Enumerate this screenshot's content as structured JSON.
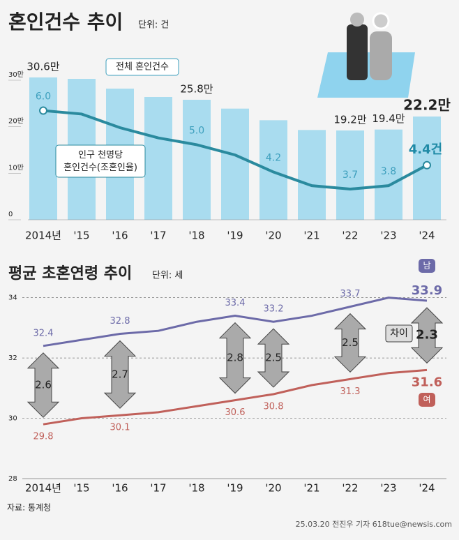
{
  "chart_data": [
    {
      "type": "bar",
      "title": "혼인건수 추이",
      "unit": "단위: 건",
      "categories": [
        "2014년",
        "'15",
        "'16",
        "'17",
        "'18",
        "'19",
        "'20",
        "'21",
        "'22",
        "'23",
        "'24"
      ],
      "series": [
        {
          "name": "전체 혼인건수",
          "color": "#a9dcef",
          "values": [
            30.6,
            30.3,
            28.2,
            26.4,
            25.8,
            23.9,
            21.4,
            19.3,
            19.2,
            19.4,
            22.2
          ],
          "value_labels": [
            "30.6만",
            null,
            null,
            null,
            "25.8만",
            null,
            null,
            null,
            "19.2만",
            "19.4만",
            "22.2만"
          ]
        },
        {
          "name": "인구 천명당 혼인건수(조혼인율)",
          "type": "line",
          "axis": "y2",
          "color": "#2a8a9e",
          "values": [
            6.0,
            5.9,
            5.5,
            5.2,
            5.0,
            4.7,
            4.2,
            3.8,
            3.7,
            3.8,
            4.4
          ],
          "value_labels": [
            "6.0",
            null,
            null,
            null,
            "5.0",
            null,
            "4.2",
            null,
            "3.7",
            "3.8",
            "4.4건"
          ]
        }
      ],
      "ylim": [
        0,
        33
      ],
      "yticks": [
        0,
        {
          "value": 10,
          "label": "10만"
        },
        {
          "value": 20,
          "label": "20만"
        },
        {
          "value": 30,
          "label": "30만"
        }
      ],
      "y2lim": [
        2.8,
        7.3
      ]
    },
    {
      "type": "line",
      "title": "평균 초혼연령 추이",
      "unit": "단위: 세",
      "categories": [
        "2014년",
        "'15",
        "'16",
        "'17",
        "'18",
        "'19",
        "'20",
        "'21",
        "'22",
        "'23",
        "'24"
      ],
      "series": [
        {
          "name": "남",
          "color": "#6c6aa8",
          "values": [
            32.4,
            32.6,
            32.8,
            32.9,
            33.2,
            33.4,
            33.2,
            33.4,
            33.7,
            34.0,
            33.9
          ],
          "value_labels": [
            "32.4",
            null,
            "32.8",
            null,
            null,
            "33.4",
            "33.2",
            null,
            "33.7",
            null,
            "33.9"
          ]
        },
        {
          "name": "여",
          "color": "#c0605a",
          "values": [
            29.8,
            30.0,
            30.1,
            30.2,
            30.4,
            30.6,
            30.8,
            31.1,
            31.3,
            31.5,
            31.6
          ],
          "value_labels": [
            "29.8",
            null,
            "30.1",
            null,
            null,
            "30.6",
            "30.8",
            null,
            "31.3",
            null,
            "31.6"
          ]
        }
      ],
      "gap_label": "차이",
      "gaps": [
        2.6,
        null,
        2.7,
        null,
        null,
        2.8,
        2.5,
        null,
        2.5,
        null,
        2.3
      ],
      "ylim": [
        28,
        34.2
      ],
      "yticks": [
        28,
        30,
        32,
        34
      ],
      "grid": true
    }
  ],
  "source": "자료: 통계청",
  "credit": "25.03.20 전진우 기자 618tue@newsis.com"
}
